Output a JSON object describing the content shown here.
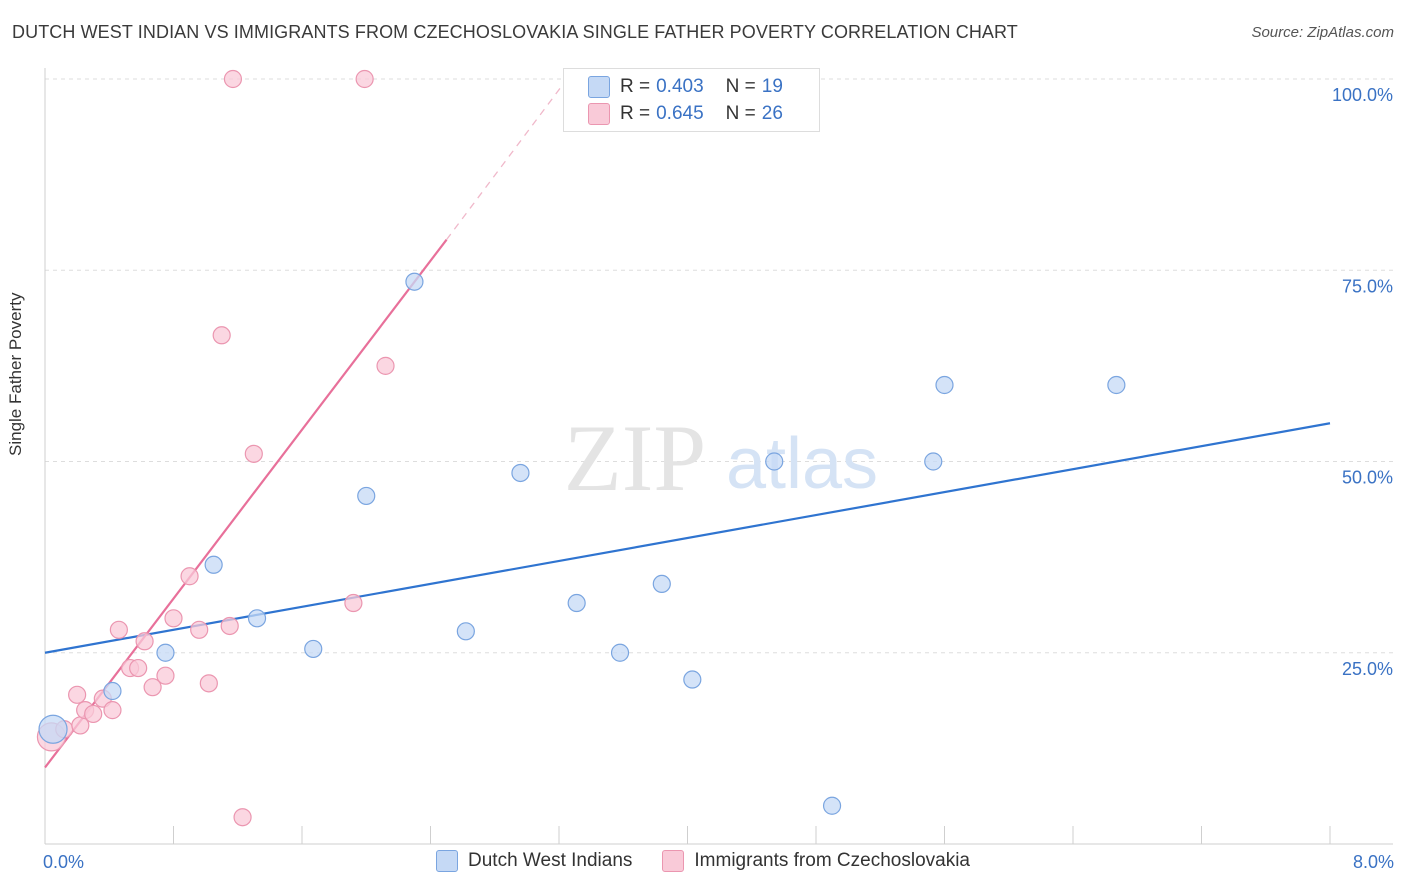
{
  "title": "DUTCH WEST INDIAN VS IMMIGRANTS FROM CZECHOSLOVAKIA SINGLE FATHER POVERTY CORRELATION CHART",
  "source": "Source: ZipAtlas.com",
  "watermark": {
    "zip": "ZIP",
    "atlas": "atlas"
  },
  "colors": {
    "blue_fill": "#c5d9f5",
    "blue_stroke": "#7aa5e0",
    "blue_line": "#2f74d0",
    "pink_fill": "#f9cad8",
    "pink_stroke": "#eb96b0",
    "pink_line": "#e8709a",
    "axis_text": "#3a72c4",
    "grid": "#dddddd"
  },
  "stats": [
    {
      "r_label": "R =",
      "r_value": "0.403",
      "n_label": "N =",
      "n_value": "19"
    },
    {
      "r_label": "R =",
      "r_value": "0.645",
      "n_label": "N =",
      "n_value": "26"
    }
  ],
  "legend": [
    {
      "label": "Dutch West Indians"
    },
    {
      "label": "Immigrants from Czechoslovakia"
    }
  ],
  "x_axis": {
    "min_label": "0.0%",
    "max_label": "8.0%"
  },
  "chart_data": {
    "type": "scatter",
    "title": "DUTCH WEST INDIAN VS IMMIGRANTS FROM CZECHOSLOVAKIA SINGLE FATHER POVERTY CORRELATION CHART",
    "xlabel": "",
    "ylabel": "Single Father Poverty",
    "xlim": [
      0,
      8
    ],
    "ylim": [
      0,
      102
    ],
    "y_ticks": [
      25,
      50,
      75,
      100
    ],
    "y_tick_labels": [
      "25.0%",
      "50.0%",
      "75.0%",
      "100.0%"
    ],
    "x_tick_labels": [
      "0.0%",
      "8.0%"
    ],
    "grid": true,
    "series": [
      {
        "name": "Dutch West Indians",
        "points": [
          {
            "x": 0.05,
            "y": 15.0,
            "big": true
          },
          {
            "x": 0.42,
            "y": 20.0
          },
          {
            "x": 0.75,
            "y": 25.0
          },
          {
            "x": 1.05,
            "y": 36.5
          },
          {
            "x": 1.32,
            "y": 29.5
          },
          {
            "x": 1.67,
            "y": 25.5
          },
          {
            "x": 2.0,
            "y": 45.5
          },
          {
            "x": 2.3,
            "y": 73.5
          },
          {
            "x": 2.62,
            "y": 27.8
          },
          {
            "x": 2.96,
            "y": 48.5
          },
          {
            "x": 3.31,
            "y": 31.5
          },
          {
            "x": 3.58,
            "y": 25.0
          },
          {
            "x": 3.84,
            "y": 34.0
          },
          {
            "x": 4.03,
            "y": 21.5
          },
          {
            "x": 4.54,
            "y": 50.0
          },
          {
            "x": 4.9,
            "y": 5.0
          },
          {
            "x": 5.53,
            "y": 50.0
          },
          {
            "x": 5.6,
            "y": 60.0
          },
          {
            "x": 6.67,
            "y": 60.0
          }
        ],
        "trend": {
          "x0": 0,
          "y0": 25.0,
          "x1": 8,
          "y1": 55.0
        }
      },
      {
        "name": "Immigrants from Czechoslovakia",
        "points": [
          {
            "x": 0.04,
            "y": 14.0,
            "big": true
          },
          {
            "x": 0.12,
            "y": 15.0
          },
          {
            "x": 0.22,
            "y": 15.5
          },
          {
            "x": 0.2,
            "y": 19.5
          },
          {
            "x": 0.25,
            "y": 17.5
          },
          {
            "x": 0.3,
            "y": 17.0
          },
          {
            "x": 0.36,
            "y": 19.0
          },
          {
            "x": 0.42,
            "y": 17.5
          },
          {
            "x": 0.46,
            "y": 28.0
          },
          {
            "x": 0.53,
            "y": 23.0
          },
          {
            "x": 0.58,
            "y": 23.0
          },
          {
            "x": 0.62,
            "y": 26.5
          },
          {
            "x": 0.67,
            "y": 20.5
          },
          {
            "x": 0.75,
            "y": 22.0
          },
          {
            "x": 0.8,
            "y": 29.5
          },
          {
            "x": 0.9,
            "y": 35.0
          },
          {
            "x": 0.96,
            "y": 28.0
          },
          {
            "x": 1.02,
            "y": 21.0
          },
          {
            "x": 1.1,
            "y": 66.5
          },
          {
            "x": 1.15,
            "y": 28.5
          },
          {
            "x": 1.17,
            "y": 100.0
          },
          {
            "x": 1.23,
            "y": 3.5
          },
          {
            "x": 1.3,
            "y": 51.0
          },
          {
            "x": 1.92,
            "y": 31.5
          },
          {
            "x": 1.99,
            "y": 100.0
          },
          {
            "x": 2.12,
            "y": 62.5
          }
        ],
        "trend": {
          "x0": 0,
          "y0": 10.0,
          "x1": 2.5,
          "y1": 79.0
        },
        "trend_dashed_to": {
          "x": 3.25,
          "y": 100.0
        }
      }
    ]
  }
}
